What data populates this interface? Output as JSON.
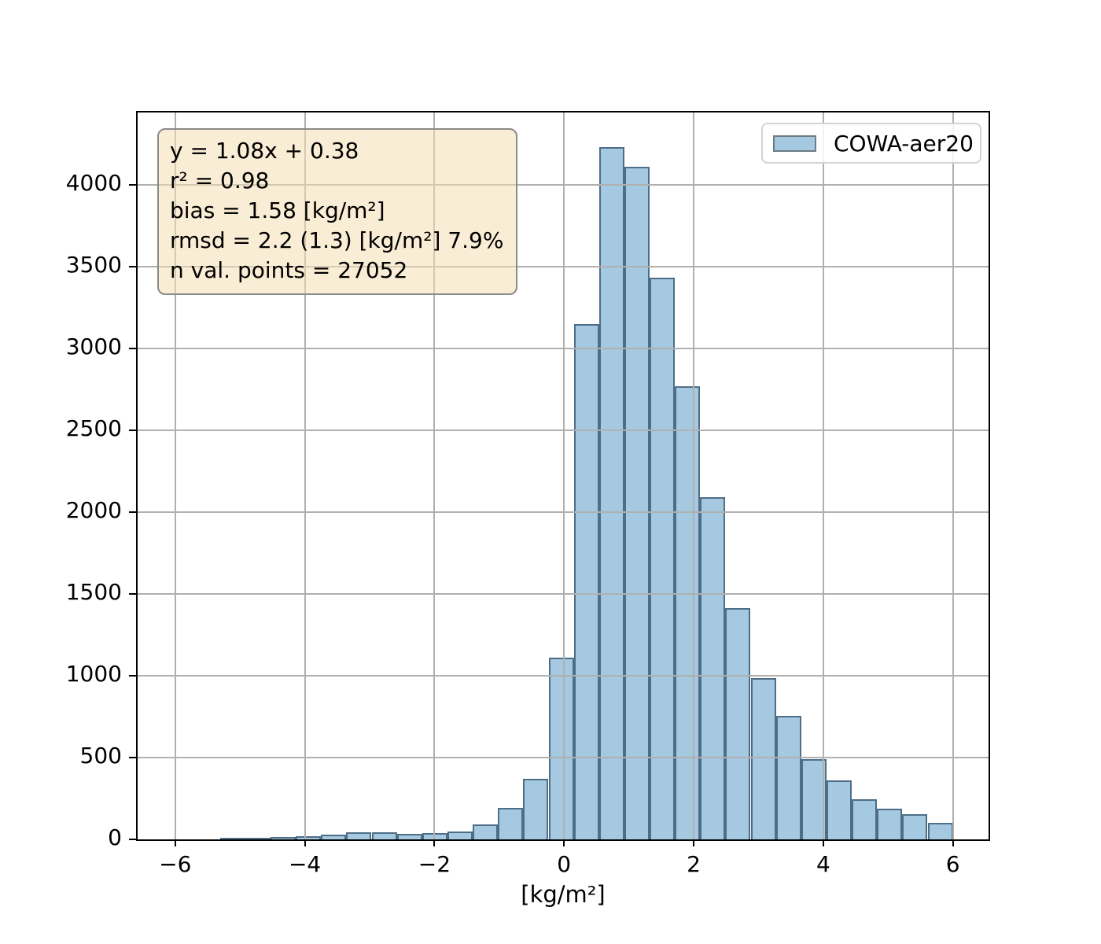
{
  "figure": {
    "background": "#ffffff"
  },
  "legend": {
    "label": "COWA-aer20",
    "position": "upper right",
    "patch_fill": "#a5c9e1",
    "patch_edge": "#6e7b85"
  },
  "stats_box": {
    "background": "wheat",
    "lines": [
      "y = 1.08x + 0.38",
      "r² = 0.98",
      "bias = 1.58 [kg/m²]",
      "rmsd = 2.2 (1.3) [kg/m²] 7.9%",
      "n val. points = 27052"
    ]
  },
  "chart_data": {
    "type": "bar",
    "subtype": "histogram",
    "title": "",
    "xlabel": "[kg/m²]",
    "ylabel": "",
    "series_name": "COWA-aer20",
    "grid": true,
    "grid_color": "#b0b0b0",
    "grid_over_bars": true,
    "xlim": [
      -6.58,
      6.55
    ],
    "ylim": [
      0,
      4440
    ],
    "xticks": [
      -6,
      -4,
      -2,
      0,
      2,
      4,
      6
    ],
    "xtick_labels": [
      "−6",
      "−4",
      "−2",
      "0",
      "2",
      "4",
      "6"
    ],
    "yticks": [
      0,
      500,
      1000,
      1500,
      2000,
      2500,
      3000,
      3500,
      4000
    ],
    "ytick_labels": [
      "0",
      "500",
      "1000",
      "1500",
      "2000",
      "2500",
      "3000",
      "3500",
      "4000"
    ],
    "bar_fill": "#a5c9e1",
    "bar_edge": "rgba(25,55,80,0.62)",
    "bin_edges": [
      -5.31,
      -4.92,
      -4.53,
      -4.14,
      -3.75,
      -3.36,
      -2.97,
      -2.58,
      -2.19,
      -1.8,
      -1.41,
      -1.02,
      -0.63,
      -0.24,
      0.15,
      0.54,
      0.93,
      1.32,
      1.71,
      2.1,
      2.49,
      2.88,
      3.27,
      3.66,
      4.05,
      4.44,
      4.83,
      5.22,
      5.61,
      6.0
    ],
    "counts": [
      5,
      8,
      13,
      18,
      28,
      43,
      43,
      36,
      41,
      48,
      93,
      193,
      368,
      1108,
      3150,
      4230,
      4110,
      3430,
      2770,
      2090,
      1415,
      985,
      755,
      490,
      360,
      245,
      188,
      152,
      100
    ]
  }
}
